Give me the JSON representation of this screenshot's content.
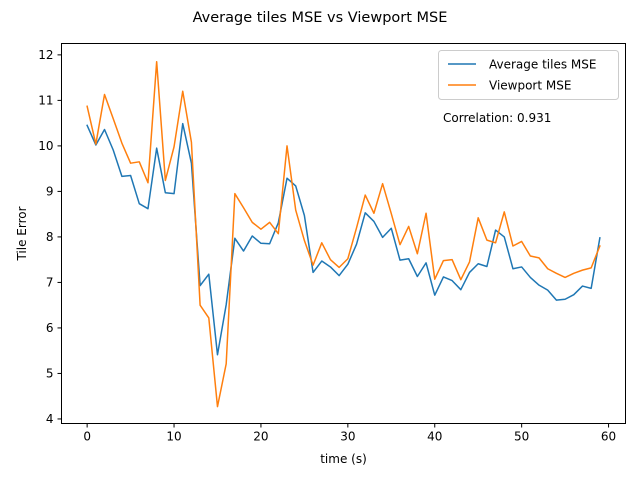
{
  "chart_data": {
    "type": "line",
    "title": "Average tiles MSE vs Viewport MSE",
    "xlabel": "time (s)",
    "ylabel": "Tile Error",
    "xlim": [
      -2.95,
      61.95
    ],
    "ylim": [
      3.9,
      12.25
    ],
    "xticks": [
      0,
      10,
      20,
      30,
      40,
      50,
      60
    ],
    "yticks": [
      4,
      5,
      6,
      7,
      8,
      9,
      10,
      11,
      12
    ],
    "grid": false,
    "legend_position": "top-right",
    "annotation": "Correlation: 0.931",
    "x": [
      0,
      1,
      2,
      3,
      4,
      5,
      6,
      7,
      8,
      9,
      10,
      11,
      12,
      13,
      14,
      15,
      16,
      17,
      18,
      19,
      20,
      21,
      22,
      23,
      24,
      25,
      26,
      27,
      28,
      29,
      30,
      31,
      32,
      33,
      34,
      35,
      36,
      37,
      38,
      39,
      40,
      41,
      42,
      43,
      44,
      45,
      46,
      47,
      48,
      49,
      50,
      51,
      52,
      53,
      54,
      55,
      56,
      57,
      58,
      59
    ],
    "series": [
      {
        "name": "Average tiles MSE",
        "color": "#1f77b4",
        "values": [
          10.45,
          10.02,
          10.36,
          9.91,
          9.33,
          9.35,
          8.73,
          8.62,
          9.95,
          8.97,
          8.95,
          10.49,
          9.62,
          6.93,
          7.18,
          5.41,
          6.51,
          7.97,
          7.69,
          8.02,
          7.86,
          7.85,
          8.31,
          9.29,
          9.12,
          8.47,
          7.22,
          7.47,
          7.34,
          7.15,
          7.4,
          7.84,
          8.53,
          8.34,
          7.99,
          8.19,
          7.49,
          7.52,
          7.13,
          7.43,
          6.72,
          7.12,
          7.04,
          6.84,
          7.22,
          7.41,
          7.35,
          8.15,
          8.0,
          7.3,
          7.34,
          7.11,
          6.94,
          6.83,
          6.61,
          6.63,
          6.73,
          6.92,
          6.87,
          7.98
        ]
      },
      {
        "name": "Viewport MSE",
        "color": "#ff7f0e",
        "values": [
          10.87,
          10.04,
          11.13,
          10.6,
          10.06,
          9.62,
          9.65,
          9.19,
          11.85,
          9.24,
          9.98,
          11.2,
          10.08,
          6.5,
          6.22,
          4.27,
          5.21,
          8.95,
          8.64,
          8.32,
          8.17,
          8.32,
          8.07,
          10.0,
          8.59,
          7.92,
          7.38,
          7.87,
          7.5,
          7.33,
          7.52,
          8.2,
          8.92,
          8.52,
          9.17,
          8.51,
          7.83,
          8.23,
          7.63,
          8.52,
          7.07,
          7.48,
          7.5,
          7.06,
          7.45,
          8.42,
          7.93,
          7.87,
          8.55,
          7.8,
          7.9,
          7.58,
          7.54,
          7.3,
          7.2,
          7.11,
          7.2,
          7.27,
          7.32,
          7.8
        ]
      }
    ]
  }
}
